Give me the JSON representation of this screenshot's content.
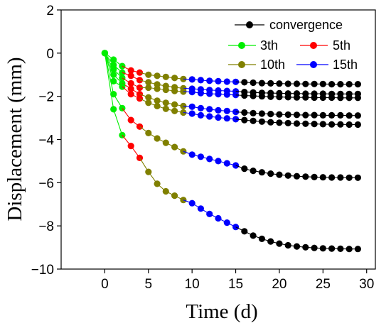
{
  "colors": {
    "convergence": "#000000",
    "3th": "#00ee00",
    "5th": "#ff0000",
    "10th": "#808000",
    "15th": "#0000ff"
  },
  "chart_data": {
    "type": "line",
    "title": "",
    "xlabel": "Time (d)",
    "ylabel": "Displacement (mm)",
    "xlim": [
      -5,
      31
    ],
    "ylim": [
      -10,
      2
    ],
    "xticks": [
      0,
      5,
      10,
      15,
      20,
      25,
      30
    ],
    "yticks": [
      2,
      0,
      -2,
      -4,
      -6,
      -8,
      -10
    ],
    "grid": false,
    "legend_position": "top-right",
    "legend": [
      "convergence",
      "3th",
      "5th",
      "10th",
      "15th"
    ],
    "curves": [
      {
        "segments": [
          {
            "series": "3th",
            "x": [
              0,
              1,
              2
            ],
            "y": [
              0,
              -0.3,
              -0.6
            ]
          },
          {
            "series": "5th",
            "x": [
              3,
              4
            ],
            "y": [
              -0.8,
              -0.9
            ]
          },
          {
            "series": "10th",
            "x": [
              5,
              6,
              7,
              8,
              9
            ],
            "y": [
              -1.0,
              -1.05,
              -1.1,
              -1.15,
              -1.2
            ]
          },
          {
            "series": "15th",
            "x": [
              10,
              11,
              12,
              13,
              14,
              15
            ],
            "y": [
              -1.22,
              -1.25,
              -1.28,
              -1.3,
              -1.32,
              -1.33
            ]
          },
          {
            "series": "convergence",
            "x": [
              16,
              17,
              18,
              19,
              20,
              21,
              22,
              23,
              24,
              25,
              26,
              27,
              28,
              29
            ],
            "y": [
              -1.35,
              -1.37,
              -1.39,
              -1.4,
              -1.41,
              -1.42,
              -1.42,
              -1.43,
              -1.43,
              -1.43,
              -1.44,
              -1.44,
              -1.44,
              -1.44
            ]
          }
        ]
      },
      {
        "segments": [
          {
            "series": "3th",
            "x": [
              0,
              1,
              2
            ],
            "y": [
              0,
              -0.55,
              -0.9
            ]
          },
          {
            "series": "5th",
            "x": [
              3,
              4
            ],
            "y": [
              -1.05,
              -1.25
            ]
          },
          {
            "series": "10th",
            "x": [
              5,
              6,
              7,
              8,
              9
            ],
            "y": [
              -1.35,
              -1.45,
              -1.52,
              -1.58,
              -1.63
            ]
          },
          {
            "series": "15th",
            "x": [
              10,
              11,
              12,
              13,
              14,
              15
            ],
            "y": [
              -1.65,
              -1.68,
              -1.71,
              -1.73,
              -1.75,
              -1.77
            ]
          },
          {
            "series": "convergence",
            "x": [
              16,
              17,
              18,
              19,
              20,
              21,
              22,
              23,
              24,
              25,
              26,
              27,
              28,
              29
            ],
            "y": [
              -1.8,
              -1.82,
              -1.84,
              -1.85,
              -1.86,
              -1.87,
              -1.87,
              -1.88,
              -1.88,
              -1.88,
              -1.89,
              -1.89,
              -1.89,
              -1.89
            ]
          }
        ]
      },
      {
        "segments": [
          {
            "series": "3th",
            "x": [
              0,
              1,
              2
            ],
            "y": [
              0,
              -0.75,
              -1.15
            ]
          },
          {
            "series": "5th",
            "x": [
              3,
              4
            ],
            "y": [
              -1.4,
              -1.6
            ]
          },
          {
            "series": "10th",
            "x": [
              5,
              6,
              7,
              8,
              9
            ],
            "y": [
              -1.6,
              -1.65,
              -1.7,
              -1.75,
              -1.78
            ]
          },
          {
            "series": "15th",
            "x": [
              10,
              11,
              12,
              13,
              14,
              15
            ],
            "y": [
              -1.8,
              -1.85,
              -1.88,
              -1.9,
              -1.92,
              -1.94
            ]
          },
          {
            "series": "convergence",
            "x": [
              16,
              17,
              18,
              19,
              20,
              21,
              22,
              23,
              24,
              25,
              26,
              27,
              28,
              29
            ],
            "y": [
              -1.96,
              -1.98,
              -2.0,
              -2.02,
              -2.03,
              -2.04,
              -2.05,
              -2.05,
              -2.06,
              -2.06,
              -2.06,
              -2.07,
              -2.07,
              -2.07
            ]
          }
        ]
      },
      {
        "segments": [
          {
            "series": "3th",
            "x": [
              0,
              1,
              2
            ],
            "y": [
              0,
              -1.0,
              -1.4
            ]
          },
          {
            "series": "5th",
            "x": [
              3,
              4
            ],
            "y": [
              -1.65,
              -1.9
            ]
          },
          {
            "series": "10th",
            "x": [
              5,
              6,
              7,
              8,
              9
            ],
            "y": [
              -2.05,
              -2.2,
              -2.3,
              -2.38,
              -2.45
            ]
          },
          {
            "series": "15th",
            "x": [
              10,
              11,
              12,
              13,
              14,
              15
            ],
            "y": [
              -2.48,
              -2.55,
              -2.6,
              -2.65,
              -2.68,
              -2.72
            ]
          },
          {
            "series": "convergence",
            "x": [
              16,
              17,
              18,
              19,
              20,
              21,
              22,
              23,
              24,
              25,
              26,
              27,
              28,
              29
            ],
            "y": [
              -2.75,
              -2.78,
              -2.8,
              -2.82,
              -2.84,
              -2.85,
              -2.86,
              -2.87,
              -2.87,
              -2.88,
              -2.88,
              -2.88,
              -2.89,
              -2.89
            ]
          }
        ]
      },
      {
        "segments": [
          {
            "series": "3th",
            "x": [
              0,
              1,
              2
            ],
            "y": [
              0,
              -1.3,
              -1.55
            ]
          },
          {
            "series": "5th",
            "x": [
              3,
              4
            ],
            "y": [
              -1.9,
              -2.1
            ]
          },
          {
            "series": "10th",
            "x": [
              5,
              6,
              7,
              8,
              9
            ],
            "y": [
              -2.3,
              -2.45,
              -2.58,
              -2.68,
              -2.75
            ]
          },
          {
            "series": "15th",
            "x": [
              10,
              11,
              12,
              13,
              14,
              15
            ],
            "y": [
              -2.8,
              -2.88,
              -2.93,
              -2.98,
              -3.02,
              -3.06
            ]
          },
          {
            "series": "convergence",
            "x": [
              16,
              17,
              18,
              19,
              20,
              21,
              22,
              23,
              24,
              25,
              26,
              27,
              28,
              29
            ],
            "y": [
              -3.1,
              -3.14,
              -3.17,
              -3.2,
              -3.22,
              -3.24,
              -3.26,
              -3.27,
              -3.28,
              -3.29,
              -3.3,
              -3.3,
              -3.31,
              -3.31
            ]
          }
        ]
      },
      {
        "segments": [
          {
            "series": "3th",
            "x": [
              0,
              1,
              2
            ],
            "y": [
              0,
              -1.9,
              -2.55
            ]
          },
          {
            "series": "5th",
            "x": [
              3,
              4
            ],
            "y": [
              -3.1,
              -3.4
            ]
          },
          {
            "series": "10th",
            "x": [
              5,
              6,
              7,
              8,
              9
            ],
            "y": [
              -3.7,
              -3.95,
              -4.15,
              -4.35,
              -4.55
            ]
          },
          {
            "series": "15th",
            "x": [
              10,
              11,
              12,
              13,
              14,
              15
            ],
            "y": [
              -4.7,
              -4.8,
              -4.9,
              -5.0,
              -5.1,
              -5.2
            ]
          },
          {
            "series": "convergence",
            "x": [
              16,
              17,
              18,
              19,
              20,
              21,
              22,
              23,
              24,
              25,
              26,
              27,
              28,
              29
            ],
            "y": [
              -5.35,
              -5.45,
              -5.52,
              -5.58,
              -5.63,
              -5.67,
              -5.7,
              -5.72,
              -5.74,
              -5.75,
              -5.76,
              -5.76,
              -5.77,
              -5.77
            ]
          }
        ]
      },
      {
        "segments": [
          {
            "series": "3th",
            "x": [
              0,
              1,
              2
            ],
            "y": [
              0,
              -2.6,
              -3.8
            ]
          },
          {
            "series": "5th",
            "x": [
              3,
              4
            ],
            "y": [
              -4.3,
              -4.85
            ]
          },
          {
            "series": "10th",
            "x": [
              5,
              6,
              7,
              8,
              9
            ],
            "y": [
              -5.5,
              -6.05,
              -6.4,
              -6.6,
              -6.8
            ]
          },
          {
            "series": "15th",
            "x": [
              10,
              11,
              12,
              13,
              14,
              15
            ],
            "y": [
              -6.95,
              -7.2,
              -7.45,
              -7.65,
              -7.85,
              -8.05
            ]
          },
          {
            "series": "convergence",
            "x": [
              16,
              17,
              18,
              19,
              20,
              21,
              22,
              23,
              24,
              25,
              26,
              27,
              28,
              29
            ],
            "y": [
              -8.25,
              -8.45,
              -8.6,
              -8.72,
              -8.82,
              -8.9,
              -8.95,
              -8.99,
              -9.02,
              -9.04,
              -9.05,
              -9.06,
              -9.07,
              -9.07
            ]
          }
        ]
      }
    ]
  }
}
